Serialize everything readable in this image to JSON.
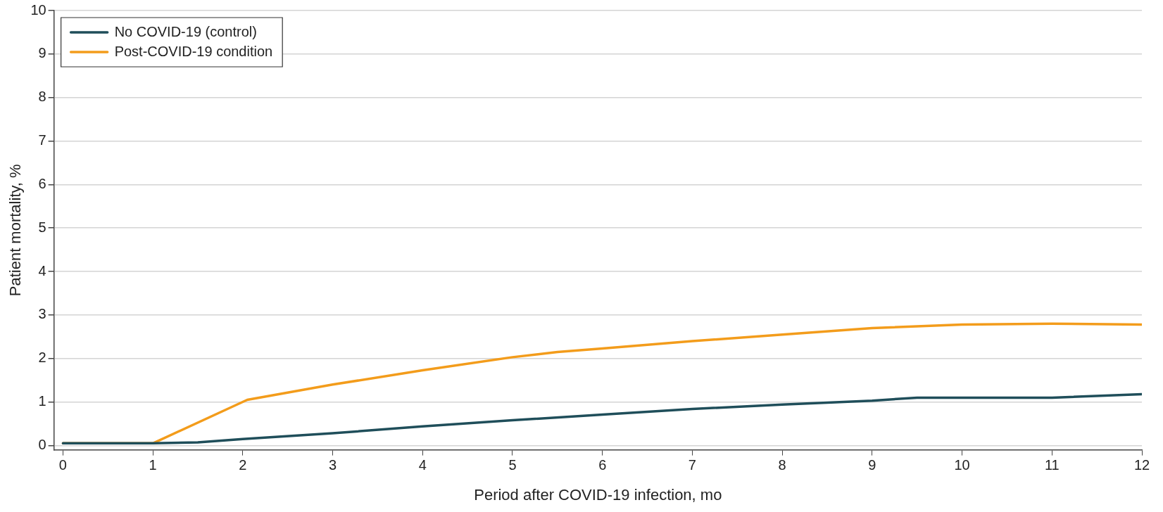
{
  "chart_data": {
    "type": "line",
    "xlabel": "Period after COVID-19 infection, mo",
    "ylabel": "Patient mortality, %",
    "xlim": [
      -0.1,
      12
    ],
    "xticks": [
      0,
      1,
      2,
      3,
      4,
      5,
      6,
      7,
      8,
      9,
      10,
      11,
      12
    ],
    "ylim": [
      -0.1,
      10
    ],
    "yticks": [
      0,
      1,
      2,
      3,
      4,
      5,
      6,
      7,
      8,
      9,
      10
    ],
    "grid": "y",
    "legend": "top left",
    "marker": "none",
    "line_style": "solid",
    "series": [
      {
        "name": "No COVID-19 (control)",
        "color": "#1f4e5a",
        "x": [
          0,
          1,
          1.5,
          2,
          3,
          4,
          5,
          6,
          7,
          8,
          9,
          9.5,
          10,
          11,
          12
        ],
        "values": [
          0.05,
          0.05,
          0.07,
          0.15,
          0.28,
          0.44,
          0.58,
          0.71,
          0.84,
          0.94,
          1.03,
          1.1,
          1.1,
          1.1,
          1.18
        ]
      },
      {
        "name": "Post-COVID-19 condition",
        "color": "#f39c1b",
        "x": [
          0,
          1,
          2.05,
          3,
          4,
          5,
          5.5,
          6,
          7,
          8,
          9,
          10,
          11,
          12
        ],
        "values": [
          0.05,
          0.05,
          1.05,
          1.4,
          1.73,
          2.03,
          2.15,
          2.23,
          2.4,
          2.55,
          2.7,
          2.78,
          2.8,
          2.78
        ]
      }
    ]
  }
}
